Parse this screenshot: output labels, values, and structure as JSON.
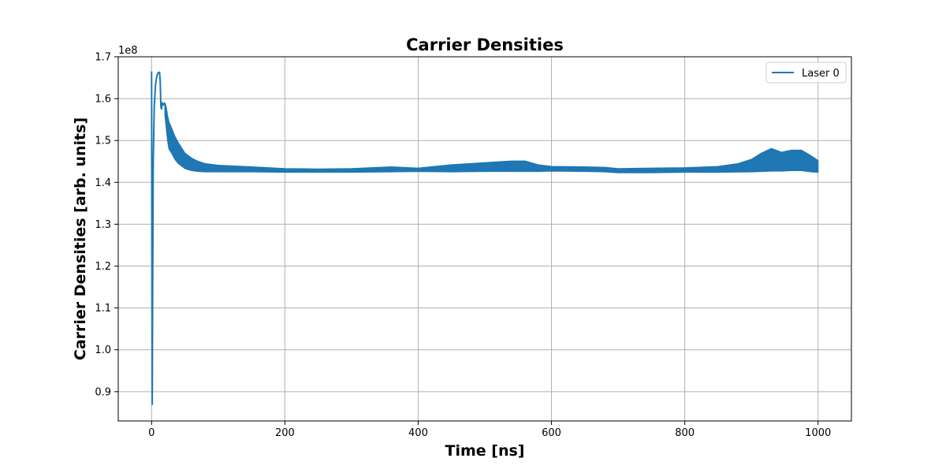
{
  "chart_data": {
    "type": "line",
    "title": "Carrier Densities",
    "xlabel": "Time [ns]",
    "ylabel": "Carrier Densities [arb. units]",
    "y_offset_label": "1e8",
    "xlim": [
      -50,
      1050
    ],
    "ylim": [
      0.83,
      1.7
    ],
    "x_ticks": [
      {
        "value": 0,
        "label": "0"
      },
      {
        "value": 200,
        "label": "200"
      },
      {
        "value": 400,
        "label": "400"
      },
      {
        "value": 600,
        "label": "600"
      },
      {
        "value": 800,
        "label": "800"
      },
      {
        "value": 1000,
        "label": "1000"
      }
    ],
    "y_ticks": [
      {
        "value": 0.9,
        "label": "0.9"
      },
      {
        "value": 1.0,
        "label": "1.0"
      },
      {
        "value": 1.1,
        "label": "1.1"
      },
      {
        "value": 1.2,
        "label": "1.2"
      },
      {
        "value": 1.3,
        "label": "1.3"
      },
      {
        "value": 1.4,
        "label": "1.4"
      },
      {
        "value": 1.5,
        "label": "1.5"
      },
      {
        "value": 1.6,
        "label": "1.6"
      },
      {
        "value": 1.7,
        "label": "1.7"
      }
    ],
    "grid": true,
    "legend_position": "top-right",
    "series": [
      {
        "name": "Laser 0",
        "color": "#1f77b4",
        "spike_points": [
          [
            0,
            1.665
          ],
          [
            0.3,
            1.4
          ],
          [
            0.7,
            1.1
          ],
          [
            1.0,
            0.87
          ],
          [
            1.5,
            1.1
          ],
          [
            2.5,
            1.45
          ],
          [
            4,
            1.58
          ],
          [
            6,
            1.635
          ],
          [
            8,
            1.655
          ],
          [
            10,
            1.662
          ],
          [
            12,
            1.663
          ],
          [
            13,
            1.64
          ],
          [
            14,
            1.58
          ],
          [
            15,
            1.575
          ],
          [
            16,
            1.59
          ],
          [
            18,
            1.585
          ],
          [
            20,
            1.59
          ]
        ],
        "envelope_upper": [
          [
            20,
            1.59
          ],
          [
            22,
            1.58
          ],
          [
            24,
            1.56
          ],
          [
            26,
            1.545
          ],
          [
            30,
            1.53
          ],
          [
            35,
            1.51
          ],
          [
            40,
            1.495
          ],
          [
            50,
            1.47
          ],
          [
            60,
            1.458
          ],
          [
            70,
            1.45
          ],
          [
            80,
            1.445
          ],
          [
            100,
            1.441
          ],
          [
            150,
            1.437
          ],
          [
            200,
            1.433
          ],
          [
            250,
            1.432
          ],
          [
            300,
            1.433
          ],
          [
            360,
            1.437
          ],
          [
            400,
            1.434
          ],
          [
            450,
            1.442
          ],
          [
            500,
            1.447
          ],
          [
            540,
            1.451
          ],
          [
            560,
            1.451
          ],
          [
            580,
            1.442
          ],
          [
            600,
            1.438
          ],
          [
            650,
            1.437
          ],
          [
            680,
            1.436
          ],
          [
            700,
            1.433
          ],
          [
            750,
            1.434
          ],
          [
            800,
            1.435
          ],
          [
            850,
            1.438
          ],
          [
            880,
            1.445
          ],
          [
            900,
            1.455
          ],
          [
            915,
            1.47
          ],
          [
            930,
            1.481
          ],
          [
            945,
            1.472
          ],
          [
            960,
            1.477
          ],
          [
            975,
            1.477
          ],
          [
            990,
            1.463
          ],
          [
            1000,
            1.452
          ]
        ],
        "envelope_lower": [
          [
            1000,
            1.424
          ],
          [
            990,
            1.425
          ],
          [
            975,
            1.428
          ],
          [
            960,
            1.428
          ],
          [
            945,
            1.427
          ],
          [
            930,
            1.427
          ],
          [
            900,
            1.425
          ],
          [
            850,
            1.424
          ],
          [
            800,
            1.424
          ],
          [
            750,
            1.423
          ],
          [
            700,
            1.423
          ],
          [
            680,
            1.425
          ],
          [
            650,
            1.426
          ],
          [
            600,
            1.427
          ],
          [
            580,
            1.426
          ],
          [
            540,
            1.426
          ],
          [
            500,
            1.426
          ],
          [
            450,
            1.425
          ],
          [
            400,
            1.426
          ],
          [
            360,
            1.425
          ],
          [
            300,
            1.424
          ],
          [
            250,
            1.424
          ],
          [
            200,
            1.424
          ],
          [
            150,
            1.425
          ],
          [
            100,
            1.425
          ],
          [
            80,
            1.425
          ],
          [
            70,
            1.426
          ],
          [
            60,
            1.428
          ],
          [
            50,
            1.433
          ],
          [
            40,
            1.445
          ],
          [
            35,
            1.455
          ],
          [
            30,
            1.47
          ],
          [
            26,
            1.48
          ],
          [
            24,
            1.5
          ],
          [
            22,
            1.53
          ],
          [
            20,
            1.56
          ]
        ]
      }
    ]
  }
}
